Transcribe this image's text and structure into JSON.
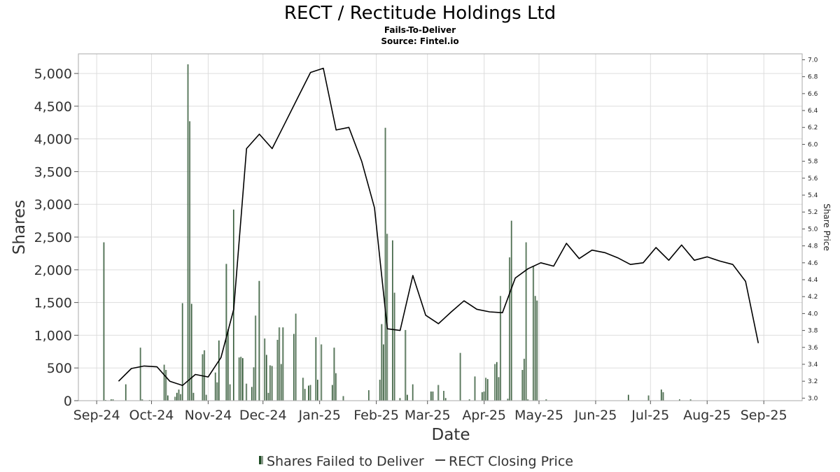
{
  "chart_data": {
    "type": "bar",
    "title": "RECT / Rectitude Holdings Ltd",
    "subtitle": "Fails-To-Deliver",
    "source": "Source: Fintel.io",
    "xlabel": "Date",
    "ylabel": "Shares",
    "y2label": "Share Price",
    "ylim": [
      0,
      5300
    ],
    "y2lim": [
      2.97,
      7.07
    ],
    "yticks": [
      {
        "value": 0,
        "label": "0"
      },
      {
        "value": 500,
        "label": "500"
      },
      {
        "value": 1000,
        "label": "1,000"
      },
      {
        "value": 1500,
        "label": "1,500"
      },
      {
        "value": 2000,
        "label": "2,000"
      },
      {
        "value": 2500,
        "label": "2,500"
      },
      {
        "value": 3000,
        "label": "3,000"
      },
      {
        "value": 3500,
        "label": "3,500"
      },
      {
        "value": 4000,
        "label": "4,000"
      },
      {
        "value": 4500,
        "label": "4,500"
      },
      {
        "value": 5000,
        "label": "5,000"
      }
    ],
    "y2ticks": [
      {
        "value": 3.0,
        "label": "3.0"
      },
      {
        "value": 3.2,
        "label": "3.2"
      },
      {
        "value": 3.4,
        "label": "3.4"
      },
      {
        "value": 3.6,
        "label": "3.6"
      },
      {
        "value": 3.8,
        "label": "3.8"
      },
      {
        "value": 4.0,
        "label": "4.0"
      },
      {
        "value": 4.2,
        "label": "4.2"
      },
      {
        "value": 4.4,
        "label": "4.4"
      },
      {
        "value": 4.6,
        "label": "4.6"
      },
      {
        "value": 4.8,
        "label": "4.8"
      },
      {
        "value": 5.0,
        "label": "5.0"
      },
      {
        "value": 5.2,
        "label": "5.2"
      },
      {
        "value": 5.4,
        "label": "5.4"
      },
      {
        "value": 5.6,
        "label": "5.6"
      },
      {
        "value": 5.8,
        "label": "5.8"
      },
      {
        "value": 6.0,
        "label": "6.0"
      },
      {
        "value": 6.2,
        "label": "6.2"
      },
      {
        "value": 6.4,
        "label": "6.4"
      },
      {
        "value": 6.6,
        "label": "6.6"
      },
      {
        "value": 6.8,
        "label": "6.8"
      },
      {
        "value": 7.0,
        "label": "7.0"
      }
    ],
    "xrange": [
      "2024-08-22",
      "2025-09-22"
    ],
    "xticks": [
      {
        "date": "2024-09-01",
        "label": "Sep-24"
      },
      {
        "date": "2024-10-01",
        "label": "Oct-24"
      },
      {
        "date": "2024-11-01",
        "label": "Nov-24"
      },
      {
        "date": "2024-12-01",
        "label": "Dec-24"
      },
      {
        "date": "2025-01-01",
        "label": "Jan-25"
      },
      {
        "date": "2025-02-01",
        "label": "Feb-25"
      },
      {
        "date": "2025-03-01",
        "label": "Mar-25"
      },
      {
        "date": "2025-04-01",
        "label": "Apr-25"
      },
      {
        "date": "2025-05-01",
        "label": "May-25"
      },
      {
        "date": "2025-06-01",
        "label": "Jun-25"
      },
      {
        "date": "2025-07-01",
        "label": "Jul-25"
      },
      {
        "date": "2025-08-01",
        "label": "Aug-25"
      },
      {
        "date": "2025-09-01",
        "label": "Sep-25"
      }
    ],
    "grid": true,
    "legend_position": "bottom-center",
    "colors": {
      "bar_dark": "#1e4d24",
      "bar_light": "#8a9a8a",
      "line": "#000000",
      "grid": "#dddddd"
    },
    "series": [
      {
        "name": "Shares Failed to Deliver",
        "type": "bar",
        "points": [
          [
            "2024-09-05",
            2420
          ],
          [
            "2024-09-06",
            10
          ],
          [
            "2024-09-09",
            20
          ],
          [
            "2024-09-10",
            20
          ],
          [
            "2024-09-17",
            250
          ],
          [
            "2024-09-25",
            810
          ],
          [
            "2024-09-26",
            20
          ],
          [
            "2024-09-30",
            10
          ],
          [
            "2024-10-08",
            550
          ],
          [
            "2024-10-09",
            470
          ],
          [
            "2024-10-10",
            80
          ],
          [
            "2024-10-14",
            60
          ],
          [
            "2024-10-15",
            120
          ],
          [
            "2024-10-16",
            170
          ],
          [
            "2024-10-17",
            100
          ],
          [
            "2024-10-18",
            1490
          ],
          [
            "2024-10-21",
            5140
          ],
          [
            "2024-10-22",
            4270
          ],
          [
            "2024-10-23",
            1480
          ],
          [
            "2024-10-24",
            120
          ],
          [
            "2024-10-29",
            710
          ],
          [
            "2024-10-30",
            770
          ],
          [
            "2024-10-31",
            90
          ],
          [
            "2024-11-05",
            430
          ],
          [
            "2024-11-06",
            280
          ],
          [
            "2024-11-07",
            920
          ],
          [
            "2024-11-11",
            2090
          ],
          [
            "2024-11-12",
            1090
          ],
          [
            "2024-11-13",
            250
          ],
          [
            "2024-11-15",
            2920
          ],
          [
            "2024-11-18",
            660
          ],
          [
            "2024-11-19",
            670
          ],
          [
            "2024-11-20",
            650
          ],
          [
            "2024-11-22",
            260
          ],
          [
            "2024-11-25",
            210
          ],
          [
            "2024-11-26",
            510
          ],
          [
            "2024-11-27",
            1300
          ],
          [
            "2024-11-29",
            1830
          ],
          [
            "2024-12-02",
            950
          ],
          [
            "2024-12-03",
            700
          ],
          [
            "2024-12-04",
            120
          ],
          [
            "2024-12-05",
            540
          ],
          [
            "2024-12-06",
            530
          ],
          [
            "2024-12-09",
            930
          ],
          [
            "2024-12-10",
            1120
          ],
          [
            "2024-12-11",
            560
          ],
          [
            "2024-12-12",
            1120
          ],
          [
            "2024-12-18",
            1020
          ],
          [
            "2024-12-19",
            1330
          ],
          [
            "2024-12-23",
            350
          ],
          [
            "2024-12-24",
            180
          ],
          [
            "2024-12-26",
            230
          ],
          [
            "2024-12-27",
            240
          ],
          [
            "2024-12-30",
            970
          ],
          [
            "2024-12-31",
            320
          ],
          [
            "2025-01-02",
            860
          ],
          [
            "2025-01-08",
            240
          ],
          [
            "2025-01-09",
            810
          ],
          [
            "2025-01-10",
            420
          ],
          [
            "2025-01-14",
            70
          ],
          [
            "2025-01-28",
            160
          ],
          [
            "2025-02-03",
            320
          ],
          [
            "2025-02-04",
            1170
          ],
          [
            "2025-02-05",
            860
          ],
          [
            "2025-02-06",
            4170
          ],
          [
            "2025-02-07",
            2550
          ],
          [
            "2025-02-10",
            2450
          ],
          [
            "2025-02-11",
            1650
          ],
          [
            "2025-02-14",
            40
          ],
          [
            "2025-02-17",
            1080
          ],
          [
            "2025-02-18",
            90
          ],
          [
            "2025-02-21",
            250
          ],
          [
            "2025-03-03",
            140
          ],
          [
            "2025-03-04",
            140
          ],
          [
            "2025-03-07",
            240
          ],
          [
            "2025-03-10",
            150
          ],
          [
            "2025-03-11",
            40
          ],
          [
            "2025-03-19",
            730
          ],
          [
            "2025-03-24",
            20
          ],
          [
            "2025-03-27",
            370
          ],
          [
            "2025-03-31",
            130
          ],
          [
            "2025-04-01",
            140
          ],
          [
            "2025-04-02",
            350
          ],
          [
            "2025-04-03",
            330
          ],
          [
            "2025-04-07",
            560
          ],
          [
            "2025-04-08",
            590
          ],
          [
            "2025-04-09",
            360
          ],
          [
            "2025-04-10",
            1600
          ],
          [
            "2025-04-14",
            30
          ],
          [
            "2025-04-15",
            2190
          ],
          [
            "2025-04-16",
            2750
          ],
          [
            "2025-04-22",
            470
          ],
          [
            "2025-04-23",
            640
          ],
          [
            "2025-04-24",
            2420
          ],
          [
            "2025-04-25",
            20
          ],
          [
            "2025-04-28",
            2060
          ],
          [
            "2025-04-29",
            1600
          ],
          [
            "2025-04-30",
            1530
          ],
          [
            "2025-05-05",
            20
          ],
          [
            "2025-06-19",
            90
          ],
          [
            "2025-06-30",
            80
          ],
          [
            "2025-07-07",
            170
          ],
          [
            "2025-07-08",
            130
          ],
          [
            "2025-07-17",
            20
          ],
          [
            "2025-07-23",
            20
          ]
        ]
      },
      {
        "name": "RECT Closing Price",
        "type": "line",
        "points": [
          [
            "2024-09-13",
            3.2
          ],
          [
            "2024-09-20",
            3.35
          ],
          [
            "2024-09-27",
            3.38
          ],
          [
            "2024-10-04",
            3.37
          ],
          [
            "2024-10-11",
            3.2
          ],
          [
            "2024-10-18",
            3.15
          ],
          [
            "2024-10-25",
            3.28
          ],
          [
            "2024-11-01",
            3.25
          ],
          [
            "2024-11-08",
            3.48
          ],
          [
            "2024-11-15",
            4.05
          ],
          [
            "2024-11-22",
            5.95
          ],
          [
            "2024-11-29",
            6.12
          ],
          [
            "2024-12-06",
            5.95
          ],
          [
            "2024-12-13",
            6.25
          ],
          [
            "2024-12-20",
            6.55
          ],
          [
            "2024-12-27",
            6.85
          ],
          [
            "2025-01-03",
            6.9
          ],
          [
            "2025-01-10",
            6.17
          ],
          [
            "2025-01-17",
            6.2
          ],
          [
            "2025-01-24",
            5.8
          ],
          [
            "2025-01-31",
            5.25
          ],
          [
            "2025-02-07",
            3.82
          ],
          [
            "2025-02-14",
            3.8
          ],
          [
            "2025-02-21",
            4.45
          ],
          [
            "2025-02-28",
            3.98
          ],
          [
            "2025-03-07",
            3.88
          ],
          [
            "2025-03-14",
            4.02
          ],
          [
            "2025-03-21",
            4.15
          ],
          [
            "2025-03-28",
            4.05
          ],
          [
            "2025-04-04",
            4.02
          ],
          [
            "2025-04-11",
            4.01
          ],
          [
            "2025-04-18",
            4.42
          ],
          [
            "2025-04-25",
            4.53
          ],
          [
            "2025-05-02",
            4.6
          ],
          [
            "2025-05-09",
            4.56
          ],
          [
            "2025-05-16",
            4.83
          ],
          [
            "2025-05-23",
            4.65
          ],
          [
            "2025-05-30",
            4.75
          ],
          [
            "2025-06-06",
            4.72
          ],
          [
            "2025-06-13",
            4.66
          ],
          [
            "2025-06-20",
            4.58
          ],
          [
            "2025-06-27",
            4.6
          ],
          [
            "2025-07-04",
            4.78
          ],
          [
            "2025-07-11",
            4.63
          ],
          [
            "2025-07-18",
            4.81
          ],
          [
            "2025-07-25",
            4.63
          ],
          [
            "2025-08-01",
            4.67
          ],
          [
            "2025-08-08",
            4.62
          ],
          [
            "2025-08-15",
            4.58
          ],
          [
            "2025-08-22",
            4.38
          ],
          [
            "2025-08-29",
            3.65
          ]
        ]
      }
    ]
  }
}
